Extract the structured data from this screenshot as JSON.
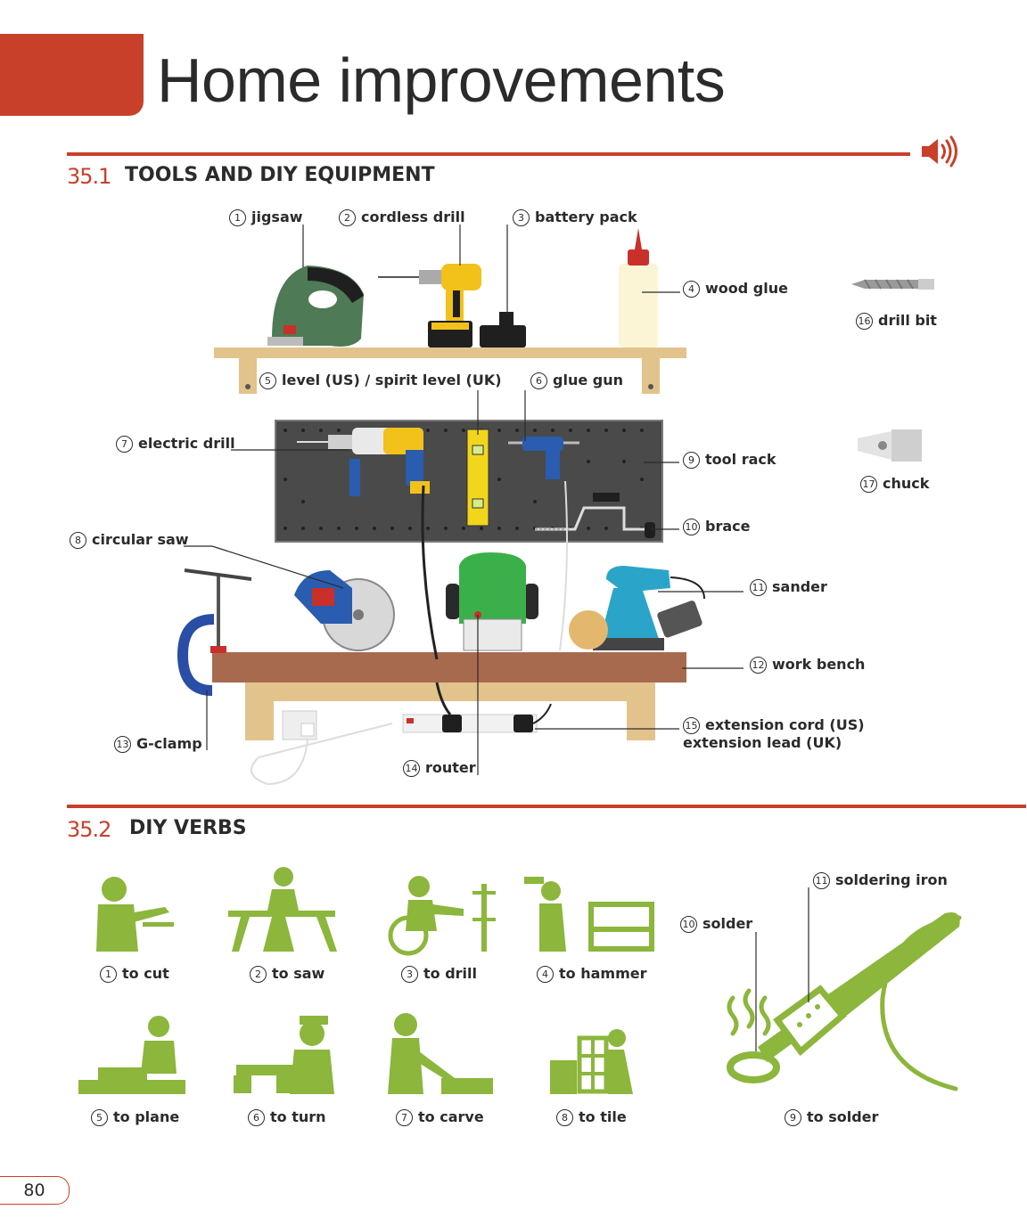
{
  "page": {
    "title": "Home improvements",
    "page_number": "80",
    "accent_color": "#c9402a",
    "audio_icon": "speaker-icon"
  },
  "section1": {
    "number": "35.1",
    "title": "TOOLS AND DIY EQUIPMENT",
    "items": [
      {
        "n": "1",
        "label": "jigsaw"
      },
      {
        "n": "2",
        "label": "cordless drill"
      },
      {
        "n": "3",
        "label": "battery pack"
      },
      {
        "n": "4",
        "label": "wood glue"
      },
      {
        "n": "5",
        "label": "level (US) / spirit level (UK)"
      },
      {
        "n": "6",
        "label": "glue gun"
      },
      {
        "n": "7",
        "label": "electric drill"
      },
      {
        "n": "8",
        "label": "circular saw"
      },
      {
        "n": "9",
        "label": "tool rack"
      },
      {
        "n": "10",
        "label": "brace"
      },
      {
        "n": "11",
        "label": "sander"
      },
      {
        "n": "12",
        "label": "work bench"
      },
      {
        "n": "13",
        "label": "G-clamp"
      },
      {
        "n": "14",
        "label": "router"
      },
      {
        "n": "15",
        "label": "extension cord (US)",
        "label2": "extension lead (UK)"
      },
      {
        "n": "16",
        "label": "drill bit"
      },
      {
        "n": "17",
        "label": "chuck"
      }
    ]
  },
  "section2": {
    "number": "35.2",
    "title": "DIY VERBS",
    "green": "#8cb63c",
    "verbs": [
      {
        "n": "1",
        "label": "to cut"
      },
      {
        "n": "2",
        "label": "to saw"
      },
      {
        "n": "3",
        "label": "to drill"
      },
      {
        "n": "4",
        "label": "to hammer"
      },
      {
        "n": "5",
        "label": "to plane"
      },
      {
        "n": "6",
        "label": "to turn"
      },
      {
        "n": "7",
        "label": "to carve"
      },
      {
        "n": "8",
        "label": "to tile"
      },
      {
        "n": "9",
        "label": "to solder"
      },
      {
        "n": "10",
        "label": "solder"
      },
      {
        "n": "11",
        "label": "soldering iron"
      }
    ]
  }
}
